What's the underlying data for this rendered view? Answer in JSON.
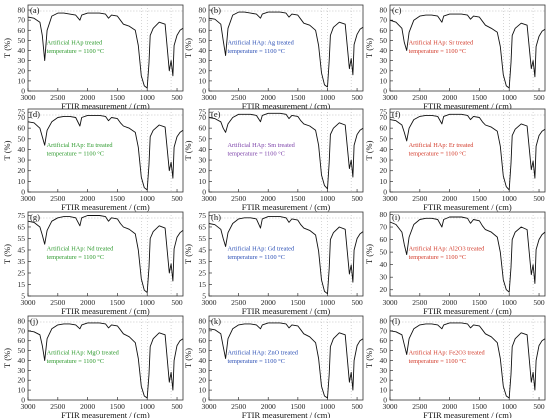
{
  "x_label": "FTIR measurement / (cm)",
  "y_label": "T (%)",
  "x_ticks": [
    3000,
    2500,
    2000,
    1500,
    1000,
    500
  ],
  "chart_data": [
    {
      "type": "line",
      "panel_label": "(a)",
      "annotation": [
        "Artificial HAp treated",
        "temperature = 1100 °C"
      ],
      "annotation_color": "#2e9a2e",
      "xlim": [
        3000,
        400
      ],
      "ylim": [
        0,
        85
      ],
      "y_ticks": [
        0,
        10,
        20,
        30,
        40,
        50,
        60,
        70,
        80
      ],
      "x": [
        3000,
        2900,
        2800,
        2760,
        2720,
        2680,
        2600,
        2500,
        2400,
        2300,
        2200,
        2130,
        2100,
        2000,
        1900,
        1800,
        1700,
        1650,
        1600,
        1500,
        1450,
        1400,
        1300,
        1200,
        1150,
        1100,
        1050,
        1000,
        970,
        950,
        900,
        800,
        700,
        630,
        600,
        570,
        550,
        500,
        450,
        400
      ],
      "y": [
        73,
        72,
        68,
        55,
        30,
        60,
        74,
        77,
        77,
        76,
        75,
        70,
        75,
        77,
        77,
        77,
        76,
        72,
        75,
        74,
        70,
        66,
        64,
        60,
        45,
        15,
        5,
        3,
        28,
        55,
        62,
        68,
        66,
        20,
        30,
        15,
        45,
        55,
        60,
        62
      ]
    },
    {
      "type": "line",
      "panel_label": "(b)",
      "annotation": [
        "Artificial HAp: Ag treated",
        "temperature = 1100 °C"
      ],
      "annotation_color": "#2b4fb5",
      "xlim": [
        3000,
        400
      ],
      "ylim": [
        0,
        85
      ],
      "y_ticks": [
        0,
        10,
        20,
        30,
        40,
        50,
        60,
        70,
        80
      ],
      "x": [
        3000,
        2900,
        2800,
        2760,
        2720,
        2680,
        2600,
        2500,
        2400,
        2300,
        2200,
        2130,
        2100,
        2000,
        1900,
        1800,
        1700,
        1650,
        1600,
        1500,
        1450,
        1400,
        1300,
        1200,
        1150,
        1100,
        1050,
        1000,
        970,
        950,
        900,
        800,
        700,
        630,
        600,
        570,
        550,
        500,
        450,
        400
      ],
      "y": [
        72,
        71,
        66,
        50,
        35,
        62,
        75,
        78,
        78,
        77,
        76,
        72,
        76,
        78,
        78,
        78,
        77,
        73,
        76,
        75,
        71,
        67,
        65,
        60,
        45,
        18,
        6,
        4,
        30,
        55,
        63,
        68,
        66,
        22,
        32,
        16,
        46,
        56,
        61,
        63
      ]
    },
    {
      "type": "line",
      "panel_label": "(c)",
      "annotation": [
        "Artificial HAp: Sr treated",
        "temperature = 1100 °C"
      ],
      "annotation_color": "#d23a2a",
      "xlim": [
        3000,
        400
      ],
      "ylim": [
        0,
        85
      ],
      "y_ticks": [
        0,
        10,
        20,
        30,
        40,
        50,
        60,
        70,
        80
      ],
      "x": [
        3000,
        2900,
        2800,
        2760,
        2720,
        2680,
        2600,
        2500,
        2400,
        2300,
        2200,
        2130,
        2100,
        2000,
        1900,
        1800,
        1700,
        1650,
        1600,
        1500,
        1450,
        1400,
        1300,
        1200,
        1150,
        1100,
        1050,
        1000,
        970,
        950,
        900,
        800,
        700,
        630,
        600,
        570,
        550,
        500,
        450,
        400
      ],
      "y": [
        70,
        68,
        62,
        48,
        40,
        58,
        70,
        74,
        75,
        75,
        74,
        68,
        74,
        76,
        76,
        76,
        75,
        71,
        74,
        73,
        69,
        65,
        62,
        58,
        44,
        16,
        5,
        3,
        28,
        55,
        62,
        67,
        65,
        22,
        30,
        14,
        44,
        54,
        59,
        61
      ]
    },
    {
      "type": "line",
      "panel_label": "(d)",
      "annotation": [
        "Artificial HAp: Eu treated",
        "temperature = 1100 °C"
      ],
      "annotation_color": "#2e9a2e",
      "xlim": [
        3000,
        400
      ],
      "ylim": [
        0,
        78
      ],
      "y_ticks": [
        0,
        10,
        20,
        30,
        40,
        50,
        60,
        70,
        75
      ],
      "x": [
        3000,
        2900,
        2800,
        2760,
        2720,
        2680,
        2600,
        2500,
        2400,
        2300,
        2200,
        2130,
        2100,
        2000,
        1900,
        1800,
        1700,
        1650,
        1600,
        1500,
        1450,
        1400,
        1300,
        1200,
        1150,
        1100,
        1050,
        1000,
        970,
        950,
        900,
        800,
        700,
        630,
        600,
        570,
        550,
        500,
        450,
        400
      ],
      "y": [
        66,
        65,
        60,
        52,
        44,
        58,
        66,
        70,
        71,
        71,
        70,
        62,
        70,
        72,
        72,
        72,
        71,
        67,
        70,
        69,
        65,
        62,
        60,
        56,
        42,
        14,
        4,
        2,
        26,
        52,
        58,
        63,
        61,
        20,
        28,
        13,
        42,
        52,
        56,
        58
      ]
    },
    {
      "type": "line",
      "panel_label": "(e)",
      "annotation": [
        "Artificial HAp: Sm treated",
        "temperature = 1100 °C"
      ],
      "annotation_color": "#7a3fa8",
      "xlim": [
        3000,
        400
      ],
      "ylim": [
        0,
        78
      ],
      "y_ticks": [
        0,
        10,
        20,
        30,
        40,
        50,
        60,
        70,
        75
      ],
      "x": [
        3000,
        2900,
        2800,
        2760,
        2720,
        2680,
        2600,
        2500,
        2400,
        2300,
        2200,
        2130,
        2100,
        2000,
        1900,
        1800,
        1700,
        1650,
        1600,
        1500,
        1450,
        1400,
        1300,
        1200,
        1150,
        1100,
        1050,
        1000,
        970,
        950,
        900,
        800,
        700,
        630,
        600,
        570,
        550,
        500,
        450,
        400
      ],
      "y": [
        70,
        69,
        66,
        60,
        56,
        64,
        70,
        73,
        73,
        73,
        72,
        66,
        72,
        74,
        74,
        74,
        73,
        69,
        72,
        71,
        67,
        64,
        62,
        58,
        44,
        16,
        6,
        3,
        28,
        54,
        60,
        65,
        63,
        22,
        30,
        14,
        44,
        54,
        58,
        60
      ]
    },
    {
      "type": "line",
      "panel_label": "(f)",
      "annotation": [
        "Artificial HAp: Er treated",
        "temperature = 1100 °C"
      ],
      "annotation_color": "#d23a2a",
      "xlim": [
        3000,
        400
      ],
      "ylim": [
        0,
        78
      ],
      "y_ticks": [
        0,
        10,
        20,
        30,
        40,
        50,
        60,
        70,
        75
      ],
      "x": [
        3000,
        2900,
        2800,
        2760,
        2720,
        2680,
        2600,
        2500,
        2400,
        2300,
        2200,
        2130,
        2100,
        2000,
        1900,
        1800,
        1700,
        1650,
        1600,
        1500,
        1450,
        1400,
        1300,
        1200,
        1150,
        1100,
        1050,
        1000,
        970,
        950,
        900,
        800,
        700,
        630,
        600,
        570,
        550,
        500,
        450,
        400
      ],
      "y": [
        68,
        67,
        63,
        56,
        48,
        60,
        68,
        71,
        72,
        72,
        71,
        64,
        71,
        73,
        73,
        73,
        72,
        68,
        71,
        70,
        66,
        63,
        61,
        57,
        43,
        15,
        5,
        2,
        27,
        53,
        59,
        64,
        62,
        21,
        29,
        13,
        43,
        53,
        57,
        59
      ]
    },
    {
      "type": "line",
      "panel_label": "(g)",
      "annotation": [
        "Artificial HAp: Nd treated",
        "temperature = 1100 °C"
      ],
      "annotation_color": "#2e9a2e",
      "xlim": [
        3000,
        400
      ],
      "ylim": [
        5,
        78
      ],
      "y_ticks": [
        5,
        15,
        25,
        35,
        45,
        55,
        65,
        75
      ],
      "x": [
        3000,
        2900,
        2800,
        2760,
        2720,
        2680,
        2600,
        2500,
        2400,
        2300,
        2200,
        2130,
        2100,
        2000,
        1900,
        1800,
        1700,
        1650,
        1600,
        1500,
        1450,
        1400,
        1300,
        1200,
        1150,
        1100,
        1050,
        1000,
        970,
        950,
        900,
        800,
        700,
        630,
        600,
        570,
        550,
        500,
        450,
        400
      ],
      "y": [
        70,
        69,
        65,
        58,
        50,
        62,
        70,
        73,
        74,
        74,
        73,
        66,
        73,
        75,
        75,
        75,
        74,
        70,
        73,
        72,
        68,
        65,
        63,
        59,
        45,
        20,
        10,
        8,
        30,
        55,
        61,
        66,
        64,
        25,
        33,
        18,
        46,
        56,
        60,
        62
      ]
    },
    {
      "type": "line",
      "panel_label": "(h)",
      "annotation": [
        "Artificial HAp: Gd treated",
        "temperature = 1100 °C"
      ],
      "annotation_color": "#2b4fb5",
      "xlim": [
        3000,
        400
      ],
      "ylim": [
        5,
        78
      ],
      "y_ticks": [
        5,
        15,
        25,
        35,
        45,
        55,
        65,
        75
      ],
      "x": [
        3000,
        2900,
        2800,
        2760,
        2720,
        2680,
        2600,
        2500,
        2400,
        2300,
        2200,
        2130,
        2100,
        2000,
        1900,
        1800,
        1700,
        1650,
        1600,
        1500,
        1450,
        1400,
        1300,
        1200,
        1150,
        1100,
        1050,
        1000,
        970,
        950,
        900,
        800,
        700,
        630,
        600,
        570,
        550,
        500,
        450,
        400
      ],
      "y": [
        68,
        67,
        63,
        55,
        48,
        60,
        68,
        72,
        73,
        73,
        72,
        64,
        72,
        74,
        74,
        74,
        73,
        69,
        72,
        71,
        67,
        64,
        62,
        58,
        44,
        19,
        9,
        7,
        29,
        54,
        60,
        65,
        63,
        24,
        32,
        17,
        45,
        55,
        59,
        61
      ]
    },
    {
      "type": "line",
      "panel_label": "(i)",
      "annotation": [
        "Artificial HAp: Al2O3 treated",
        "temperature = 1100 °C"
      ],
      "annotation_color": "#d23a2a",
      "xlim": [
        3000,
        400
      ],
      "ylim": [
        15,
        82
      ],
      "y_ticks": [
        20,
        30,
        40,
        50,
        60,
        70,
        80
      ],
      "x": [
        3000,
        2900,
        2800,
        2760,
        2720,
        2680,
        2600,
        2500,
        2400,
        2300,
        2200,
        2130,
        2100,
        2000,
        1900,
        1800,
        1700,
        1650,
        1600,
        1500,
        1450,
        1400,
        1300,
        1200,
        1150,
        1100,
        1050,
        1000,
        970,
        950,
        900,
        800,
        700,
        630,
        600,
        570,
        550,
        500,
        450,
        400
      ],
      "y": [
        74,
        72,
        66,
        56,
        48,
        62,
        72,
        76,
        77,
        77,
        76,
        70,
        76,
        78,
        78,
        78,
        77,
        73,
        76,
        75,
        71,
        68,
        66,
        62,
        50,
        28,
        20,
        18,
        38,
        60,
        66,
        70,
        68,
        32,
        40,
        25,
        52,
        60,
        64,
        66
      ]
    },
    {
      "type": "line",
      "panel_label": "(j)",
      "annotation": [
        "Artificial HAp: MgO treated",
        "temperature = 1100 °C"
      ],
      "annotation_color": "#2e9a2e",
      "xlim": [
        3000,
        400
      ],
      "ylim": [
        0,
        85
      ],
      "y_ticks": [
        0,
        10,
        20,
        30,
        40,
        50,
        60,
        70,
        80
      ],
      "x": [
        3000,
        2900,
        2800,
        2760,
        2720,
        2680,
        2600,
        2500,
        2400,
        2300,
        2200,
        2130,
        2100,
        2000,
        1900,
        1800,
        1700,
        1650,
        1600,
        1500,
        1450,
        1400,
        1300,
        1200,
        1150,
        1100,
        1050,
        1000,
        970,
        950,
        900,
        800,
        700,
        630,
        600,
        570,
        550,
        500,
        450,
        400
      ],
      "y": [
        70,
        69,
        66,
        55,
        40,
        62,
        72,
        76,
        77,
        77,
        76,
        72,
        76,
        78,
        78,
        78,
        77,
        73,
        76,
        75,
        71,
        67,
        64,
        58,
        42,
        14,
        4,
        2,
        26,
        54,
        62,
        68,
        66,
        18,
        28,
        10,
        40,
        55,
        60,
        62
      ]
    },
    {
      "type": "line",
      "panel_label": "(k)",
      "annotation": [
        "Artificial HAp: ZnO treated",
        "temperature = 1100 °C"
      ],
      "annotation_color": "#2b4fb5",
      "xlim": [
        3000,
        400
      ],
      "ylim": [
        0,
        85
      ],
      "y_ticks": [
        0,
        10,
        20,
        30,
        40,
        50,
        60,
        70,
        80
      ],
      "x": [
        3000,
        2900,
        2800,
        2760,
        2720,
        2680,
        2600,
        2500,
        2400,
        2300,
        2200,
        2130,
        2100,
        2000,
        1900,
        1800,
        1700,
        1650,
        1600,
        1500,
        1450,
        1400,
        1300,
        1200,
        1150,
        1100,
        1050,
        1000,
        970,
        950,
        900,
        800,
        700,
        630,
        600,
        570,
        550,
        500,
        450,
        400
      ],
      "y": [
        72,
        71,
        67,
        54,
        42,
        62,
        72,
        76,
        77,
        77,
        76,
        72,
        76,
        78,
        78,
        78,
        77,
        73,
        76,
        75,
        71,
        67,
        64,
        58,
        42,
        14,
        4,
        2,
        26,
        54,
        62,
        68,
        66,
        18,
        28,
        10,
        40,
        55,
        60,
        62
      ]
    },
    {
      "type": "line",
      "panel_label": "(l)",
      "annotation": [
        "Artificial HAp: Fe2O3 treated",
        "temperature = 1100 °C"
      ],
      "annotation_color": "#d23a2a",
      "xlim": [
        3000,
        400
      ],
      "ylim": [
        0,
        85
      ],
      "y_ticks": [
        0,
        10,
        20,
        30,
        40,
        50,
        60,
        70,
        80
      ],
      "x": [
        3000,
        2900,
        2800,
        2760,
        2720,
        2680,
        2600,
        2500,
        2400,
        2300,
        2200,
        2130,
        2100,
        2000,
        1900,
        1800,
        1700,
        1650,
        1600,
        1500,
        1450,
        1400,
        1300,
        1200,
        1150,
        1100,
        1050,
        1000,
        970,
        950,
        900,
        800,
        700,
        630,
        600,
        570,
        550,
        500,
        450,
        400
      ],
      "y": [
        70,
        69,
        66,
        56,
        46,
        62,
        72,
        76,
        77,
        77,
        76,
        72,
        76,
        78,
        78,
        78,
        77,
        73,
        76,
        75,
        71,
        67,
        64,
        58,
        42,
        14,
        4,
        2,
        26,
        54,
        62,
        68,
        66,
        18,
        28,
        10,
        40,
        55,
        60,
        62
      ]
    }
  ]
}
